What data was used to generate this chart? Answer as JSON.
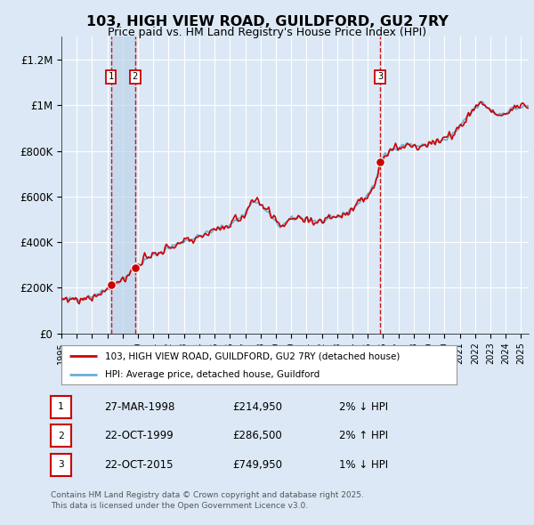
{
  "title": "103, HIGH VIEW ROAD, GUILDFORD, GU2 7RY",
  "subtitle": "Price paid vs. HM Land Registry's House Price Index (HPI)",
  "ylim": [
    0,
    1300000
  ],
  "yticks": [
    0,
    200000,
    400000,
    600000,
    800000,
    1000000,
    1200000
  ],
  "ytick_labels": [
    "£0",
    "£200K",
    "£400K",
    "£600K",
    "£800K",
    "£1M",
    "£1.2M"
  ],
  "background_color": "#dce8f5",
  "plot_bg_color": "#dce8f5",
  "grid_color": "#ffffff",
  "legend_entry1": "103, HIGH VIEW ROAD, GUILDFORD, GU2 7RY (detached house)",
  "legend_entry2": "HPI: Average price, detached house, Guildford",
  "footer": "Contains HM Land Registry data © Crown copyright and database right 2025.\nThis data is licensed under the Open Government Licence v3.0.",
  "transactions": [
    {
      "num": 1,
      "date": "27-MAR-1998",
      "price": 214950,
      "pct": "2%",
      "dir": "↓",
      "decimal_date": 1998.23
    },
    {
      "num": 2,
      "date": "22-OCT-1999",
      "price": 286500,
      "pct": "2%",
      "dir": "↑",
      "decimal_date": 1999.81
    },
    {
      "num": 3,
      "date": "22-OCT-2015",
      "price": 749950,
      "pct": "1%",
      "dir": "↓",
      "decimal_date": 2015.81
    }
  ],
  "hpi_line_color": "#6baed6",
  "price_line_color": "#cc0000",
  "transaction_dot_color": "#cc0000",
  "vline_color": "#cc0000",
  "shade_color": "#b8d0e8",
  "xlim_start": 1995.0,
  "xlim_end": 2025.5
}
